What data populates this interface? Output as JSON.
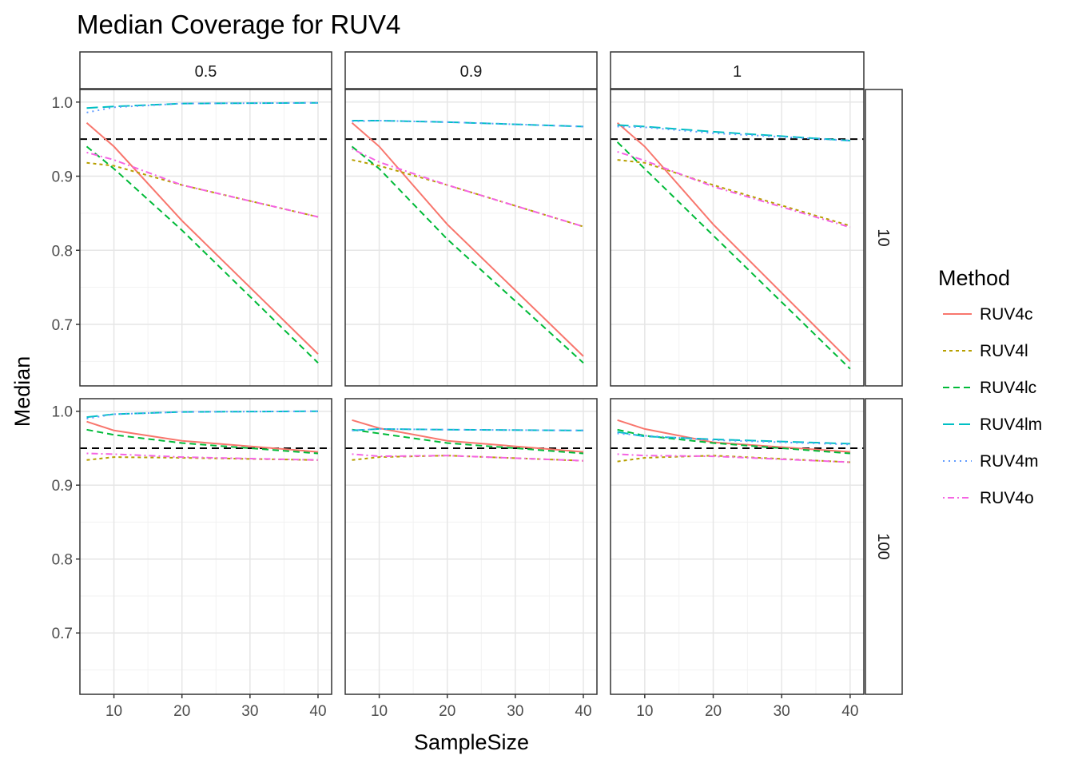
{
  "chart_data": {
    "type": "line",
    "title": "Median Coverage for RUV4",
    "xlabel": "SampleSize",
    "ylabel": "Median",
    "x": [
      6,
      10,
      20,
      40
    ],
    "xlim": [
      5,
      42
    ],
    "ylim": [
      0.617,
      1.017
    ],
    "x_ticks": [
      10,
      20,
      30,
      40
    ],
    "y_ticks": [
      0.7,
      0.8,
      0.9,
      1.0
    ],
    "x_tick_labels": [
      "10",
      "20",
      "30",
      "40"
    ],
    "y_tick_labels": [
      "0.7",
      "0.8",
      "0.9",
      "1.0"
    ],
    "reference_line": {
      "y": 0.95,
      "style": "dashed",
      "color": "#000000"
    },
    "grid": true,
    "legend": {
      "title": "Method",
      "placement": "right",
      "entries": [
        {
          "name": "RUV4c",
          "color": "#F8766D",
          "dash": "solid"
        },
        {
          "name": "RUV4l",
          "color": "#B79F00",
          "dash": "dotted-short"
        },
        {
          "name": "RUV4lc",
          "color": "#00BA38",
          "dash": "dashed-short"
        },
        {
          "name": "RUV4lm",
          "color": "#00BFC4",
          "dash": "dashed-long"
        },
        {
          "name": "RUV4m",
          "color": "#619CFF",
          "dash": "dotted"
        },
        {
          "name": "RUV4o",
          "color": "#F564E3",
          "dash": "dotdash"
        }
      ]
    },
    "col_strips": [
      "0.5",
      "0.9",
      "1"
    ],
    "row_strips": [
      "10",
      "100"
    ],
    "panels": [
      {
        "col": "0.5",
        "row": "10",
        "series": [
          {
            "name": "RUV4c",
            "values": [
              0.972,
              0.94,
              0.84,
              0.66
            ]
          },
          {
            "name": "RUV4l",
            "values": [
              0.918,
              0.914,
              0.888,
              0.845
            ]
          },
          {
            "name": "RUV4lc",
            "values": [
              0.94,
              0.91,
              0.827,
              0.648
            ]
          },
          {
            "name": "RUV4lm",
            "values": [
              0.992,
              0.994,
              0.998,
              0.999
            ]
          },
          {
            "name": "RUV4m",
            "values": [
              0.986,
              0.993,
              0.998,
              0.999
            ]
          },
          {
            "name": "RUV4o",
            "values": [
              0.932,
              0.922,
              0.888,
              0.845
            ]
          }
        ]
      },
      {
        "col": "0.9",
        "row": "10",
        "series": [
          {
            "name": "RUV4c",
            "values": [
              0.972,
              0.94,
              0.835,
              0.657
            ]
          },
          {
            "name": "RUV4l",
            "values": [
              0.922,
              0.914,
              0.888,
              0.832
            ]
          },
          {
            "name": "RUV4lc",
            "values": [
              0.94,
              0.91,
              0.815,
              0.648
            ]
          },
          {
            "name": "RUV4lm",
            "values": [
              0.975,
              0.975,
              0.973,
              0.967
            ]
          },
          {
            "name": "RUV4m",
            "values": [
              0.974,
              0.975,
              0.973,
              0.967
            ]
          },
          {
            "name": "RUV4o",
            "values": [
              0.937,
              0.919,
              0.888,
              0.832
            ]
          }
        ]
      },
      {
        "col": "1",
        "row": "10",
        "series": [
          {
            "name": "RUV4c",
            "values": [
              0.972,
              0.94,
              0.835,
              0.65
            ]
          },
          {
            "name": "RUV4l",
            "values": [
              0.922,
              0.918,
              0.888,
              0.833
            ]
          },
          {
            "name": "RUV4lc",
            "values": [
              0.946,
              0.91,
              0.82,
              0.64
            ]
          },
          {
            "name": "RUV4lm",
            "values": [
              0.969,
              0.967,
              0.96,
              0.948
            ]
          },
          {
            "name": "RUV4m",
            "values": [
              0.967,
              0.966,
              0.958,
              0.948
            ]
          },
          {
            "name": "RUV4o",
            "values": [
              0.933,
              0.921,
              0.886,
              0.831
            ]
          }
        ]
      },
      {
        "col": "0.5",
        "row": "100",
        "series": [
          {
            "name": "RUV4c",
            "values": [
              0.986,
              0.974,
              0.96,
              0.945
            ]
          },
          {
            "name": "RUV4l",
            "values": [
              0.934,
              0.938,
              0.937,
              0.934
            ]
          },
          {
            "name": "RUV4lc",
            "values": [
              0.975,
              0.968,
              0.957,
              0.943
            ]
          },
          {
            "name": "RUV4lm",
            "values": [
              0.992,
              0.996,
              0.999,
              1.0
            ]
          },
          {
            "name": "RUV4m",
            "values": [
              0.99,
              0.996,
              0.999,
              1.0
            ]
          },
          {
            "name": "RUV4o",
            "values": [
              0.943,
              0.942,
              0.938,
              0.934
            ]
          }
        ]
      },
      {
        "col": "0.9",
        "row": "100",
        "series": [
          {
            "name": "RUV4c",
            "values": [
              0.988,
              0.977,
              0.96,
              0.945
            ]
          },
          {
            "name": "RUV4l",
            "values": [
              0.934,
              0.938,
              0.94,
              0.933
            ]
          },
          {
            "name": "RUV4lc",
            "values": [
              0.975,
              0.97,
              0.957,
              0.943
            ]
          },
          {
            "name": "RUV4lm",
            "values": [
              0.974,
              0.976,
              0.975,
              0.974
            ]
          },
          {
            "name": "RUV4m",
            "values": [
              0.974,
              0.976,
              0.975,
              0.974
            ]
          },
          {
            "name": "RUV4o",
            "values": [
              0.942,
              0.939,
              0.94,
              0.933
            ]
          }
        ]
      },
      {
        "col": "1",
        "row": "100",
        "series": [
          {
            "name": "RUV4c",
            "values": [
              0.988,
              0.976,
              0.958,
              0.945
            ]
          },
          {
            "name": "RUV4l",
            "values": [
              0.932,
              0.937,
              0.94,
              0.931
            ]
          },
          {
            "name": "RUV4lc",
            "values": [
              0.975,
              0.967,
              0.957,
              0.943
            ]
          },
          {
            "name": "RUV4lm",
            "values": [
              0.972,
              0.966,
              0.962,
              0.956
            ]
          },
          {
            "name": "RUV4m",
            "values": [
              0.97,
              0.967,
              0.961,
              0.955
            ]
          },
          {
            "name": "RUV4o",
            "values": [
              0.942,
              0.94,
              0.939,
              0.931
            ]
          }
        ]
      }
    ]
  }
}
